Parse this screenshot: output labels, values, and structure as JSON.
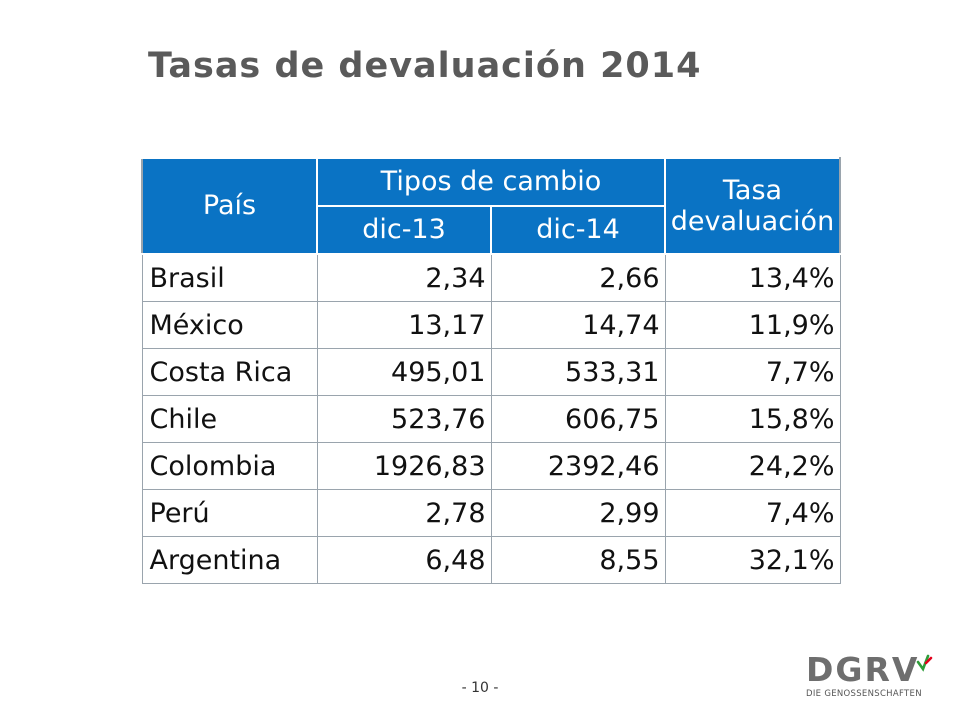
{
  "title": "Tasas de devaluación 2014",
  "table": {
    "header": {
      "country": "País",
      "exchange_group": "Tipos de cambio",
      "col_dec13": "dic-13",
      "col_dec14": "dic-14",
      "rate_line1": "Tasa",
      "rate_line2": "devaluación"
    },
    "rows": [
      {
        "country": "Brasil",
        "dec13": "2,34",
        "dec14": "2,66",
        "rate": "13,4%"
      },
      {
        "country": "México",
        "dec13": "13,17",
        "dec14": "14,74",
        "rate": "11,9%"
      },
      {
        "country": "Costa Rica",
        "dec13": "495,01",
        "dec14": "533,31",
        "rate": "7,7%"
      },
      {
        "country": "Chile",
        "dec13": "523,76",
        "dec14": "606,75",
        "rate": "15,8%"
      },
      {
        "country": "Colombia",
        "dec13": "1926,83",
        "dec14": "2392,46",
        "rate": "24,2%"
      },
      {
        "country": "Perú",
        "dec13": "2,78",
        "dec14": "2,99",
        "rate": "7,4%"
      },
      {
        "country": "Argentina",
        "dec13": "6,48",
        "dec14": "8,55",
        "rate": "32,1%"
      }
    ]
  },
  "footer": {
    "page_number": "- 10 -",
    "logo_text": "DGRV",
    "logo_tagline": "DIE GENOSSENSCHAFTEN",
    "logo_accent_colors": [
      "#2e9d3a",
      "#e3001b"
    ]
  },
  "colors": {
    "header_bg": "#0a73c4",
    "title_text": "#5a5a5a"
  }
}
